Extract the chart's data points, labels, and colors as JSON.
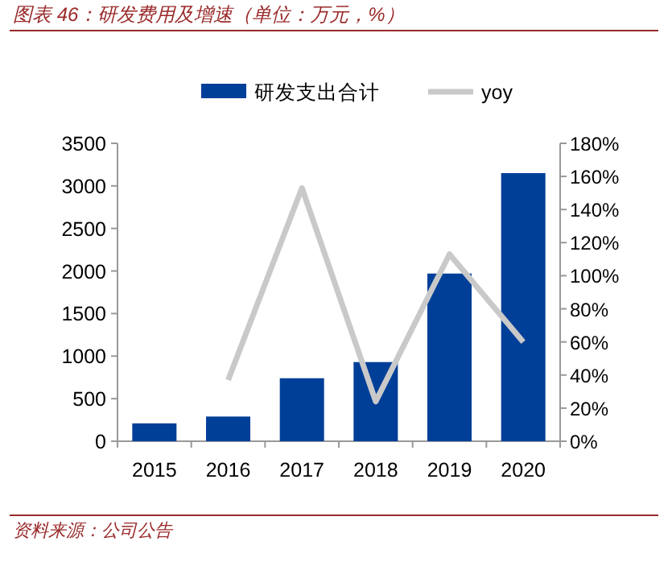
{
  "chart_data": {
    "type": "bar",
    "title": "图表 46：研发费用及增速（单位：万元，%）",
    "annotations": [
      "资料来源：公司公告"
    ],
    "categories": [
      "2015",
      "2016",
      "2017",
      "2018",
      "2019",
      "2020"
    ],
    "series": [
      {
        "name": "研发支出合计",
        "color": "#003f98",
        "values": [
          210,
          290,
          740,
          930,
          1970,
          3150
        ]
      },
      {
        "name": "yoy",
        "type": "line",
        "color": "#c9c9c9",
        "axis": "y2",
        "values": [
          null,
          37,
          153,
          24,
          113,
          60
        ]
      }
    ],
    "ylim": [
      0,
      3500
    ],
    "yticks": [
      0,
      500,
      1000,
      1500,
      2000,
      2500,
      3000,
      3500
    ],
    "y2lim": [
      0,
      180
    ],
    "y2ticks": [
      {
        "value": 0,
        "label": "0%"
      },
      {
        "value": 20,
        "label": "20%"
      },
      {
        "value": 40,
        "label": "40%"
      },
      {
        "value": 60,
        "label": "60%"
      },
      {
        "value": 80,
        "label": "80%"
      },
      {
        "value": 100,
        "label": "100%"
      },
      {
        "value": 120,
        "label": "120%"
      },
      {
        "value": 140,
        "label": "140%"
      },
      {
        "value": 160,
        "label": "160%"
      },
      {
        "value": 180,
        "label": "180%"
      }
    ],
    "legend": "top",
    "marker": "none",
    "grid": false
  }
}
